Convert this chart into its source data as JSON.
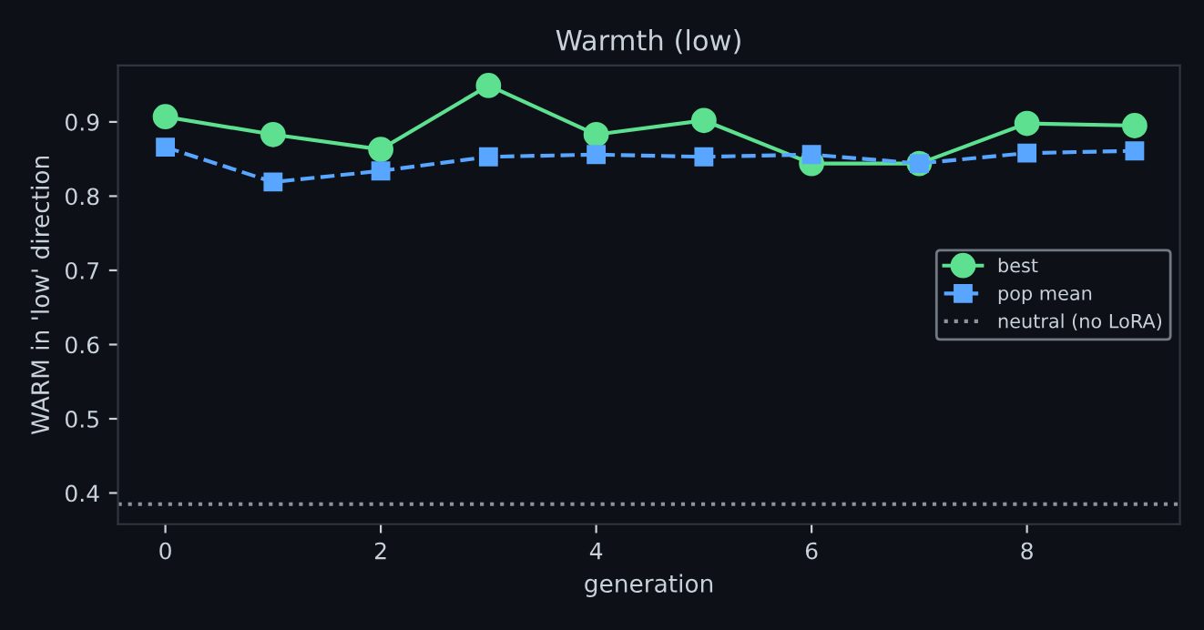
{
  "chart_data": {
    "type": "line",
    "title": "Warmth (low)",
    "xlabel": "generation",
    "ylabel": "WARM in 'low' direction",
    "x": [
      0,
      1,
      2,
      3,
      4,
      5,
      6,
      7,
      8,
      9
    ],
    "series": [
      {
        "name": "best",
        "color": "#5de08f",
        "values": [
          0.907,
          0.883,
          0.863,
          0.949,
          0.883,
          0.902,
          0.844,
          0.844,
          0.898,
          0.895
        ],
        "marker": "circle",
        "line_style": "solid"
      },
      {
        "name": "pop mean",
        "color": "#58a6ff",
        "values": [
          0.866,
          0.819,
          0.834,
          0.853,
          0.856,
          0.853,
          0.856,
          0.844,
          0.858,
          0.861
        ],
        "marker": "square",
        "line_style": "dashed"
      }
    ],
    "ref_lines": [
      {
        "axis": "y",
        "value": 0.385,
        "label": "neutral (no LoRA)",
        "color": "#8b949e",
        "line_style": "dotted"
      }
    ],
    "xlim": [
      -0.44,
      9.42
    ],
    "ylim": [
      0.358,
      0.976
    ],
    "xticks": [
      0,
      2,
      4,
      6,
      8
    ],
    "yticks": [
      0.4,
      0.5,
      0.6,
      0.7,
      0.8,
      0.9
    ],
    "grid": false,
    "legend": "right"
  }
}
